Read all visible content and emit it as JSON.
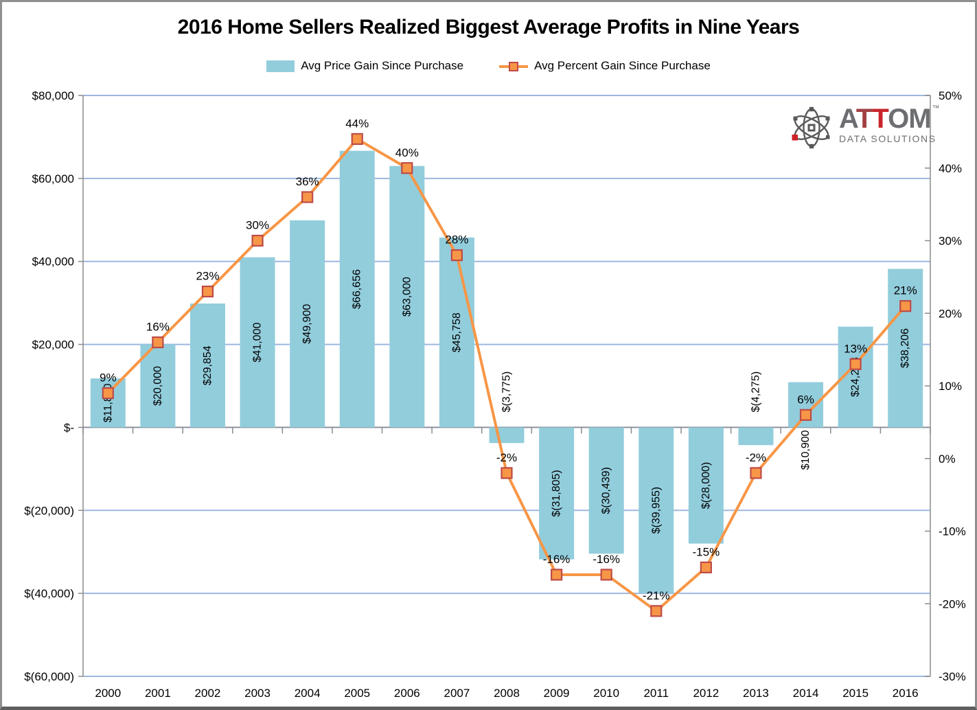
{
  "title": "2016 Home Sellers Realized Biggest Average Profits in Nine Years",
  "legend": {
    "items": [
      {
        "label": "Avg Price Gain Since Purchase",
        "swatch": "bar"
      },
      {
        "label": "Avg Percent Gain Since Purchase",
        "swatch": "line-marker"
      }
    ]
  },
  "logo": {
    "brand": "ATTOM",
    "tm": "™",
    "subtitle": "DATA SOLUTIONS",
    "gray": "#6D6E71",
    "t1_color": "#A23F42",
    "t2_color": "#C9252B",
    "accent_red": "#CE2127"
  },
  "chart_data": {
    "type": "combo-bar-line",
    "categories": [
      "2000",
      "2001",
      "2002",
      "2003",
      "2004",
      "2005",
      "2006",
      "2007",
      "2008",
      "2009",
      "2010",
      "2011",
      "2012",
      "2013",
      "2014",
      "2015",
      "2016"
    ],
    "series": [
      {
        "name": "Avg Price Gain Since Purchase",
        "type": "bar",
        "axis": "left",
        "color": "#92CDDC",
        "values": [
          11800,
          20000,
          29854,
          41000,
          49900,
          66656,
          63000,
          45758,
          -3775,
          -31805,
          -30439,
          -39955,
          -28000,
          -4275,
          10900,
          24288,
          38206
        ],
        "labels": [
          "$11,800",
          "$20,000",
          "$29,854",
          "$41,000",
          "$49,900",
          "$66,656",
          "$63,000",
          "$45,758",
          "$(3,775)",
          "$(31,805)",
          "$(30,439)",
          "$(39,955)",
          "$(28,000)",
          "$(4,275)",
          "$10,900",
          "$24,288",
          "$38,206"
        ]
      },
      {
        "name": "Avg Percent Gain Since Purchase",
        "type": "line",
        "axis": "right",
        "color": "#F79646",
        "marker_fill": "#F79646",
        "marker_border": "#BE4B48",
        "values": [
          9,
          16,
          23,
          30,
          36,
          44,
          40,
          28,
          -2,
          -16,
          -16,
          -21,
          -15,
          -2,
          6,
          13,
          21
        ],
        "labels": [
          "9%",
          "16%",
          "23%",
          "30%",
          "36%",
          "44%",
          "40%",
          "28%",
          "-2%",
          "-16%",
          "-16%",
          "-21%",
          "-15%",
          "-2%",
          "6%",
          "13%",
          "21%"
        ]
      }
    ],
    "left_axis": {
      "min": -60000,
      "max": 80000,
      "major_unit": 20000,
      "tick_values": [
        80000,
        60000,
        40000,
        20000,
        0,
        -20000,
        -40000,
        -60000
      ],
      "tick_labels": [
        "$80,000",
        "$60,000",
        "$40,000",
        "$20,000",
        "$-",
        "$(20,000)",
        "$(40,000)",
        "$(60,000)"
      ]
    },
    "right_axis": {
      "min": -30,
      "max": 50,
      "major_unit": 10,
      "tick_values": [
        50,
        40,
        30,
        20,
        10,
        0,
        -10,
        -20,
        -30
      ],
      "tick_labels": [
        "50%",
        "40%",
        "30%",
        "20%",
        "10%",
        "0%",
        "-10%",
        "-20%",
        "-30%"
      ]
    },
    "gridline_color": "#9DB7DF",
    "axis_color": "#8A8A8A",
    "label_color": "#000000",
    "legend_position": "top",
    "grid": "horizontal-only"
  }
}
